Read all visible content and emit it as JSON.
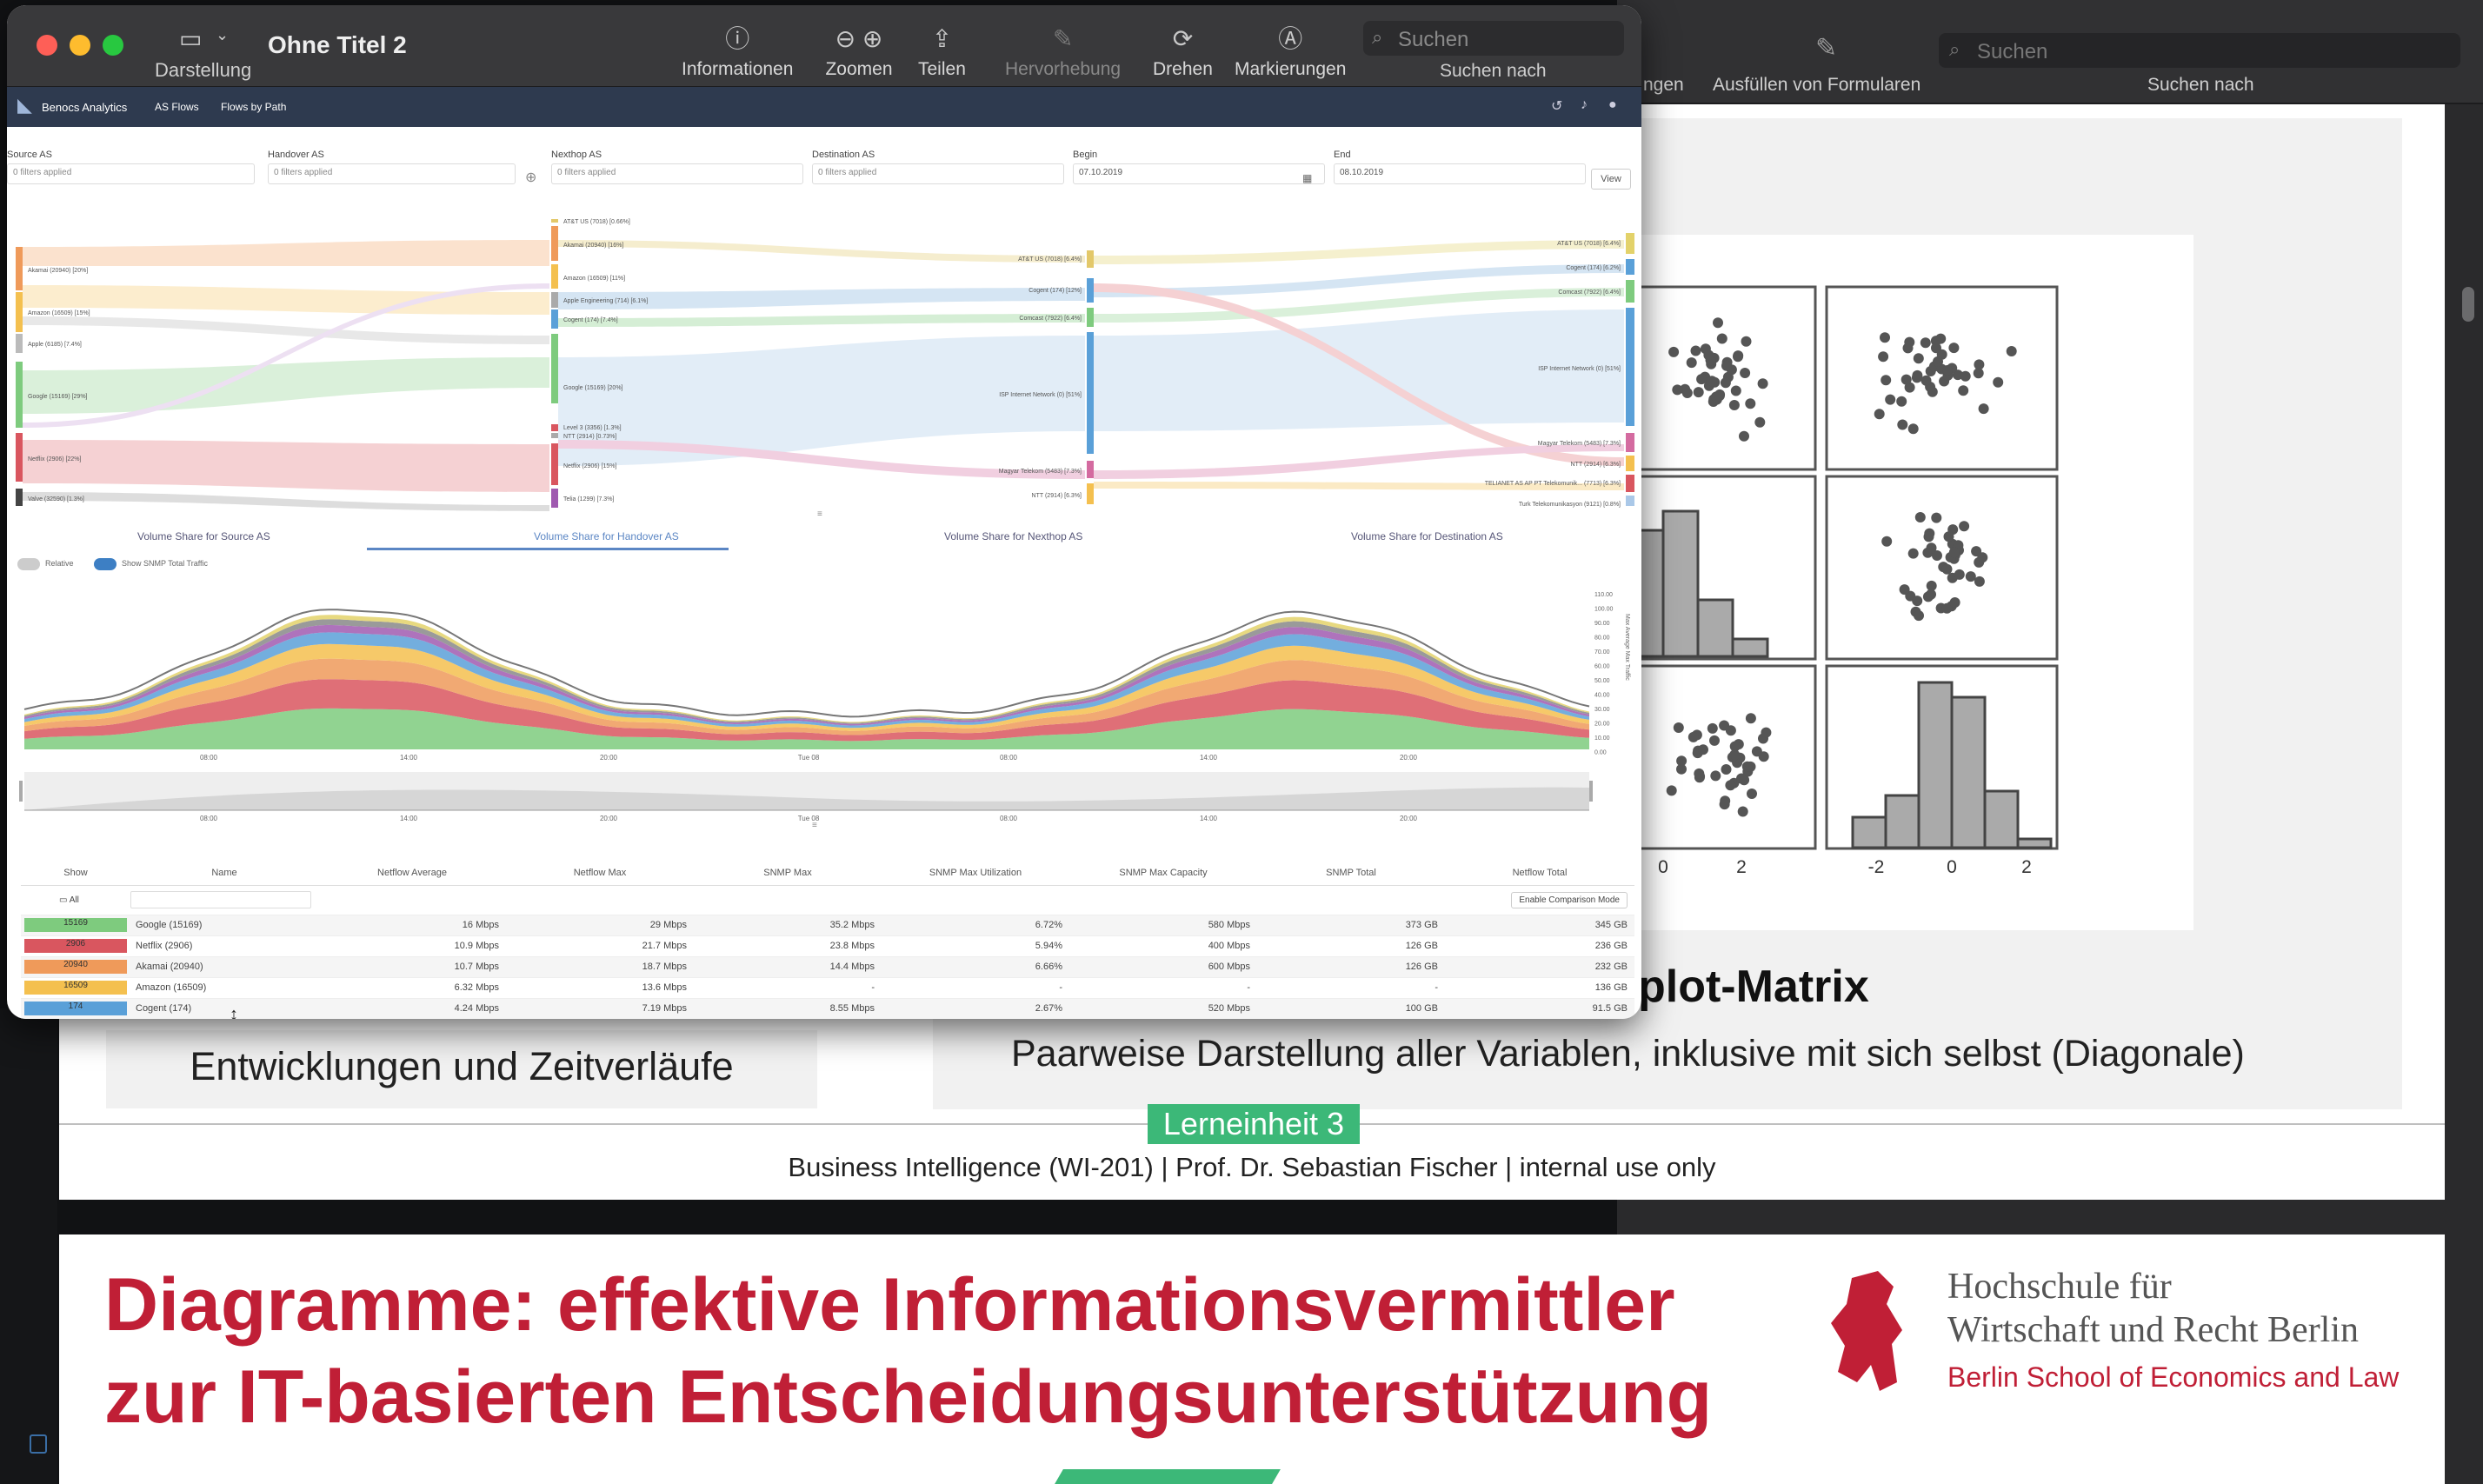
{
  "preview": {
    "window_title": "Ohne Titel 2",
    "view_label": "Darstellung",
    "toolbar": {
      "info": "Informationen",
      "zoom": "Zoomen",
      "share": "Teilen",
      "highlight": "Hervorhebung",
      "rotate": "Drehen",
      "markup": "Markierungen",
      "search_placeholder": "Suchen",
      "search_caption": "Suchen nach"
    }
  },
  "background_window": {
    "toolbar_partial": "ngen",
    "fill_forms": "Ausfüllen von Formularen",
    "search_placeholder": "Suchen",
    "search_caption": "Suchen nach"
  },
  "app": {
    "brand": "Benocs Analytics",
    "nav": [
      "AS Flows",
      "Flows by Path"
    ],
    "filters": [
      {
        "title": "Source AS",
        "value": "0 filters applied"
      },
      {
        "title": "Handover AS",
        "value": "0 filters applied"
      },
      {
        "title": "Nexthop AS",
        "value": "0 filters applied"
      },
      {
        "title": "Destination AS",
        "value": "0 filters applied"
      },
      {
        "title": "Begin",
        "value": "07.10.2019"
      },
      {
        "title": "End",
        "value": "08.10.2019"
      }
    ],
    "view_button": "View",
    "sankey": {
      "col1": [
        "Akamai (20940) [20%]",
        "Amazon (16509) [15%]",
        "Apple (6185) [7.4%]",
        "Google (15169) [29%]",
        "Netflix (2906) [22%]",
        "Valve (32590) [1.3%]"
      ],
      "col2": [
        "AT&T US (7018) [0.66%]",
        "Akamai (20940) [16%]",
        "Amazon (16509) [11%]",
        "Apple Engineering (714) [6.1%]",
        "Cogent (174) [7.4%]",
        "Google (15169) [20%]",
        "Level 3 (3356) [1.3%]",
        "NTT (2914) [0.73%]",
        "Netflix (2906) [15%]",
        "Telia (1299) [7.3%]"
      ],
      "col3": [
        "AT&T US (7018) [6.4%]",
        "Cogent (174) [12%]",
        "Comcast (7922) [6.4%]",
        "ISP Internet Network (0) [51%]",
        "Magyar Telekom (5483) [7.3%]",
        "NTT (2914) [6.3%]"
      ],
      "col4": [
        "AT&T US (7018) [6.4%]",
        "Cogent (174) [6.2%]",
        "Comcast (7922) [6.4%]",
        "ISP Internet Network (0) [51%]",
        "Magyar Telekom (5483) [7.3%]",
        "NTT (2914) [6.3%]",
        "TELIANET AS AP PT Telekomunik... (7713) [6.3%]",
        "Turk Telekomunikasyon (9121) [0.8%]"
      ]
    },
    "tabs": [
      "Volume Share for Source AS",
      "Volume Share for Handover AS",
      "Volume Share for Nexthop AS",
      "Volume Share for Destination AS"
    ],
    "toggles": [
      "Relative",
      "Show SNMP Total Traffic"
    ],
    "area_chart": {
      "x_ticks": [
        "08:00",
        "14:00",
        "20:00",
        "Tue 08",
        "08:00",
        "14:00",
        "20:00"
      ],
      "y_ticks": [
        "110.00",
        "100.00",
        "90.00",
        "80.00",
        "70.00",
        "60.00",
        "50.00",
        "40.00",
        "30.00",
        "20.00",
        "10.00",
        "0.00"
      ],
      "ylabel": "Max Average Max Traffic"
    },
    "table": {
      "headers": [
        "Show",
        "Name",
        "Netflow Average",
        "Netflow Max",
        "SNMP Max",
        "SNMP Max Utilization",
        "SNMP Max Capacity",
        "SNMP Total",
        "Netflow Total"
      ],
      "all_label": "All",
      "comparison_button": "Enable Comparison Mode",
      "rows": [
        {
          "id": "15169",
          "color": "#7ecb7e",
          "name": "Google (15169)",
          "avg": "16 Mbps",
          "max": "29 Mbps",
          "snmp_max": "35.2 Mbps",
          "util": "6.72%",
          "cap": "580 Mbps",
          "snmp_total": "373 GB",
          "nf_total": "345 GB"
        },
        {
          "id": "2906",
          "color": "#d9565f",
          "name": "Netflix (2906)",
          "avg": "10.9 Mbps",
          "max": "21.7 Mbps",
          "snmp_max": "23.8 Mbps",
          "util": "5.94%",
          "cap": "400 Mbps",
          "snmp_total": "126 GB",
          "nf_total": "236 GB"
        },
        {
          "id": "20940",
          "color": "#ef9a5a",
          "name": "Akamai (20940)",
          "avg": "10.7 Mbps",
          "max": "18.7 Mbps",
          "snmp_max": "14.4 Mbps",
          "util": "6.66%",
          "cap": "600 Mbps",
          "snmp_total": "126 GB",
          "nf_total": "232 GB"
        },
        {
          "id": "16509",
          "color": "#f4c04f",
          "name": "Amazon (16509)",
          "avg": "6.32 Mbps",
          "max": "13.6 Mbps",
          "snmp_max": "-",
          "util": "-",
          "cap": "-",
          "snmp_total": "-",
          "nf_total": "136 GB"
        },
        {
          "id": "174",
          "color": "#5aa0d8",
          "name": "Cogent (174)",
          "avg": "4.24 Mbps",
          "max": "7.19 Mbps",
          "snmp_max": "8.55 Mbps",
          "util": "2.67%",
          "cap": "520 Mbps",
          "snmp_total": "100 GB",
          "nf_total": "91.5 GB"
        }
      ]
    }
  },
  "slide": {
    "left_caption": "Entwicklungen und Zeitverläufe",
    "right_title": "plot-Matrix",
    "right_caption": "Paarweise Darstellung aller Variablen, inklusive mit sich selbst (Diagonale)",
    "axis_ticks_left": [
      "0",
      "2"
    ],
    "axis_ticks_right": [
      "-2",
      "0",
      "2"
    ],
    "badge": "Lerneinheit 3",
    "footer": "Business Intelligence (WI-201) | Prof. Dr. Sebastian Fischer | internal use only"
  },
  "slide2": {
    "title_line1": "Diagramme: effektive Informationsvermittler",
    "title_line2": "zur IT-basierten Entscheidungsunterstützung",
    "school_line1": "Hochschule für",
    "school_line2": "Wirtschaft und Recht Berlin",
    "school_line3": "Berlin School of Economics and Law"
  },
  "colors": {
    "accent_red": "#c01f36",
    "badge_green": "#3cb878",
    "app_bar": "#2e3a4f"
  }
}
